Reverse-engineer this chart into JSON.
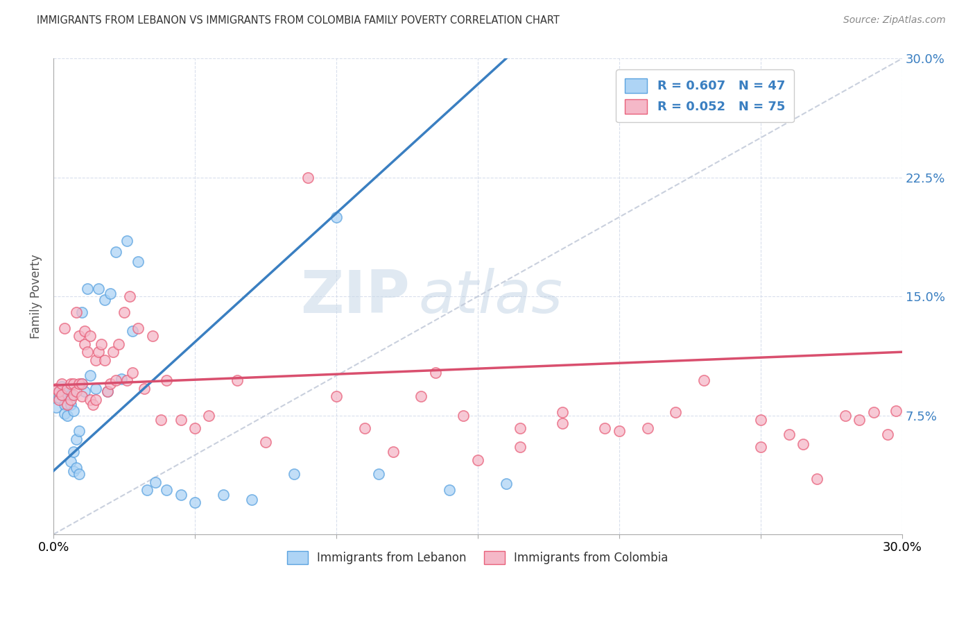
{
  "title": "IMMIGRANTS FROM LEBANON VS IMMIGRANTS FROM COLOMBIA FAMILY POVERTY CORRELATION CHART",
  "source": "Source: ZipAtlas.com",
  "ylabel": "Family Poverty",
  "xlim": [
    0,
    0.3
  ],
  "ylim": [
    0,
    0.3
  ],
  "yticks": [
    0.075,
    0.15,
    0.225,
    0.3
  ],
  "ytick_labels": [
    "7.5%",
    "15.0%",
    "22.5%",
    "30.0%"
  ],
  "color_lebanon_fill": "#aed4f5",
  "color_lebanon_edge": "#5ba3e0",
  "color_colombia_fill": "#f5b8c8",
  "color_colombia_edge": "#e8607a",
  "color_line_lebanon": "#3a7fc1",
  "color_line_colombia": "#d94f6e",
  "color_trend_dashed": "#c0c8d8",
  "watermark_zip": "ZIP",
  "watermark_atlas": "atlas",
  "lebanon_x": [
    0.001,
    0.002,
    0.002,
    0.003,
    0.003,
    0.004,
    0.004,
    0.005,
    0.005,
    0.005,
    0.006,
    0.006,
    0.006,
    0.007,
    0.007,
    0.007,
    0.008,
    0.008,
    0.009,
    0.009,
    0.01,
    0.01,
    0.011,
    0.012,
    0.013,
    0.015,
    0.016,
    0.018,
    0.019,
    0.02,
    0.022,
    0.024,
    0.026,
    0.028,
    0.03,
    0.033,
    0.036,
    0.04,
    0.045,
    0.05,
    0.06,
    0.07,
    0.085,
    0.1,
    0.115,
    0.14,
    0.16
  ],
  "lebanon_y": [
    0.08,
    0.09,
    0.086,
    0.088,
    0.093,
    0.082,
    0.076,
    0.088,
    0.075,
    0.092,
    0.088,
    0.082,
    0.046,
    0.052,
    0.04,
    0.078,
    0.06,
    0.042,
    0.038,
    0.065,
    0.14,
    0.095,
    0.09,
    0.155,
    0.1,
    0.092,
    0.155,
    0.148,
    0.09,
    0.152,
    0.178,
    0.098,
    0.185,
    0.128,
    0.172,
    0.028,
    0.033,
    0.028,
    0.025,
    0.02,
    0.025,
    0.022,
    0.038,
    0.2,
    0.038,
    0.028,
    0.032
  ],
  "colombia_x": [
    0.001,
    0.002,
    0.002,
    0.003,
    0.003,
    0.004,
    0.005,
    0.005,
    0.006,
    0.006,
    0.007,
    0.007,
    0.008,
    0.008,
    0.009,
    0.009,
    0.01,
    0.01,
    0.011,
    0.011,
    0.012,
    0.013,
    0.013,
    0.014,
    0.015,
    0.015,
    0.016,
    0.017,
    0.018,
    0.019,
    0.02,
    0.021,
    0.022,
    0.023,
    0.025,
    0.026,
    0.027,
    0.028,
    0.03,
    0.032,
    0.035,
    0.038,
    0.04,
    0.045,
    0.05,
    0.055,
    0.065,
    0.075,
    0.09,
    0.1,
    0.11,
    0.12,
    0.135,
    0.15,
    0.165,
    0.18,
    0.195,
    0.21,
    0.23,
    0.25,
    0.265,
    0.27,
    0.28,
    0.285,
    0.29,
    0.295,
    0.298,
    0.25,
    0.26,
    0.2,
    0.18,
    0.165,
    0.145,
    0.13,
    0.22
  ],
  "colombia_y": [
    0.092,
    0.085,
    0.09,
    0.095,
    0.088,
    0.13,
    0.082,
    0.092,
    0.085,
    0.095,
    0.088,
    0.095,
    0.09,
    0.14,
    0.125,
    0.095,
    0.095,
    0.087,
    0.12,
    0.128,
    0.115,
    0.125,
    0.085,
    0.082,
    0.11,
    0.085,
    0.115,
    0.12,
    0.11,
    0.09,
    0.095,
    0.115,
    0.097,
    0.12,
    0.14,
    0.097,
    0.15,
    0.102,
    0.13,
    0.092,
    0.125,
    0.072,
    0.097,
    0.072,
    0.067,
    0.075,
    0.097,
    0.058,
    0.225,
    0.087,
    0.067,
    0.052,
    0.102,
    0.047,
    0.067,
    0.077,
    0.067,
    0.067,
    0.097,
    0.072,
    0.057,
    0.035,
    0.075,
    0.072,
    0.077,
    0.063,
    0.078,
    0.055,
    0.063,
    0.065,
    0.07,
    0.055,
    0.075,
    0.087,
    0.077
  ],
  "line_lb_x0": 0.0,
  "line_lb_y0": 0.04,
  "line_lb_x1": 0.16,
  "line_lb_y1": 0.3,
  "line_co_x0": 0.0,
  "line_co_y0": 0.094,
  "line_co_x1": 0.3,
  "line_co_y1": 0.115
}
